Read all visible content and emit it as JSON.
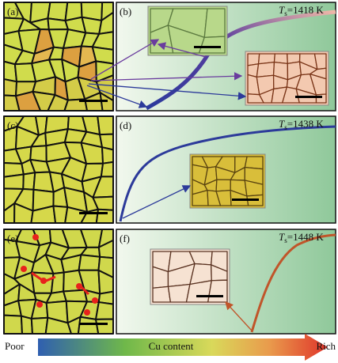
{
  "panels": [
    {
      "label": "(a)"
    },
    {
      "label": "(b)",
      "temperature": {
        "symbol": "T",
        "subscript": "s",
        "value": "=1418 K"
      }
    },
    {
      "label": "(c)"
    },
    {
      "label": "(d)",
      "temperature": {
        "symbol": "T",
        "subscript": "s",
        "value": "=1438 K"
      }
    },
    {
      "label": "(e)"
    },
    {
      "label": "(f)",
      "temperature": {
        "symbol": "T",
        "subscript": "s",
        "value": "=1448 K"
      }
    }
  ],
  "colorbar": {
    "low": "Poor",
    "middle": "Cu content",
    "high": "Rich"
  }
}
